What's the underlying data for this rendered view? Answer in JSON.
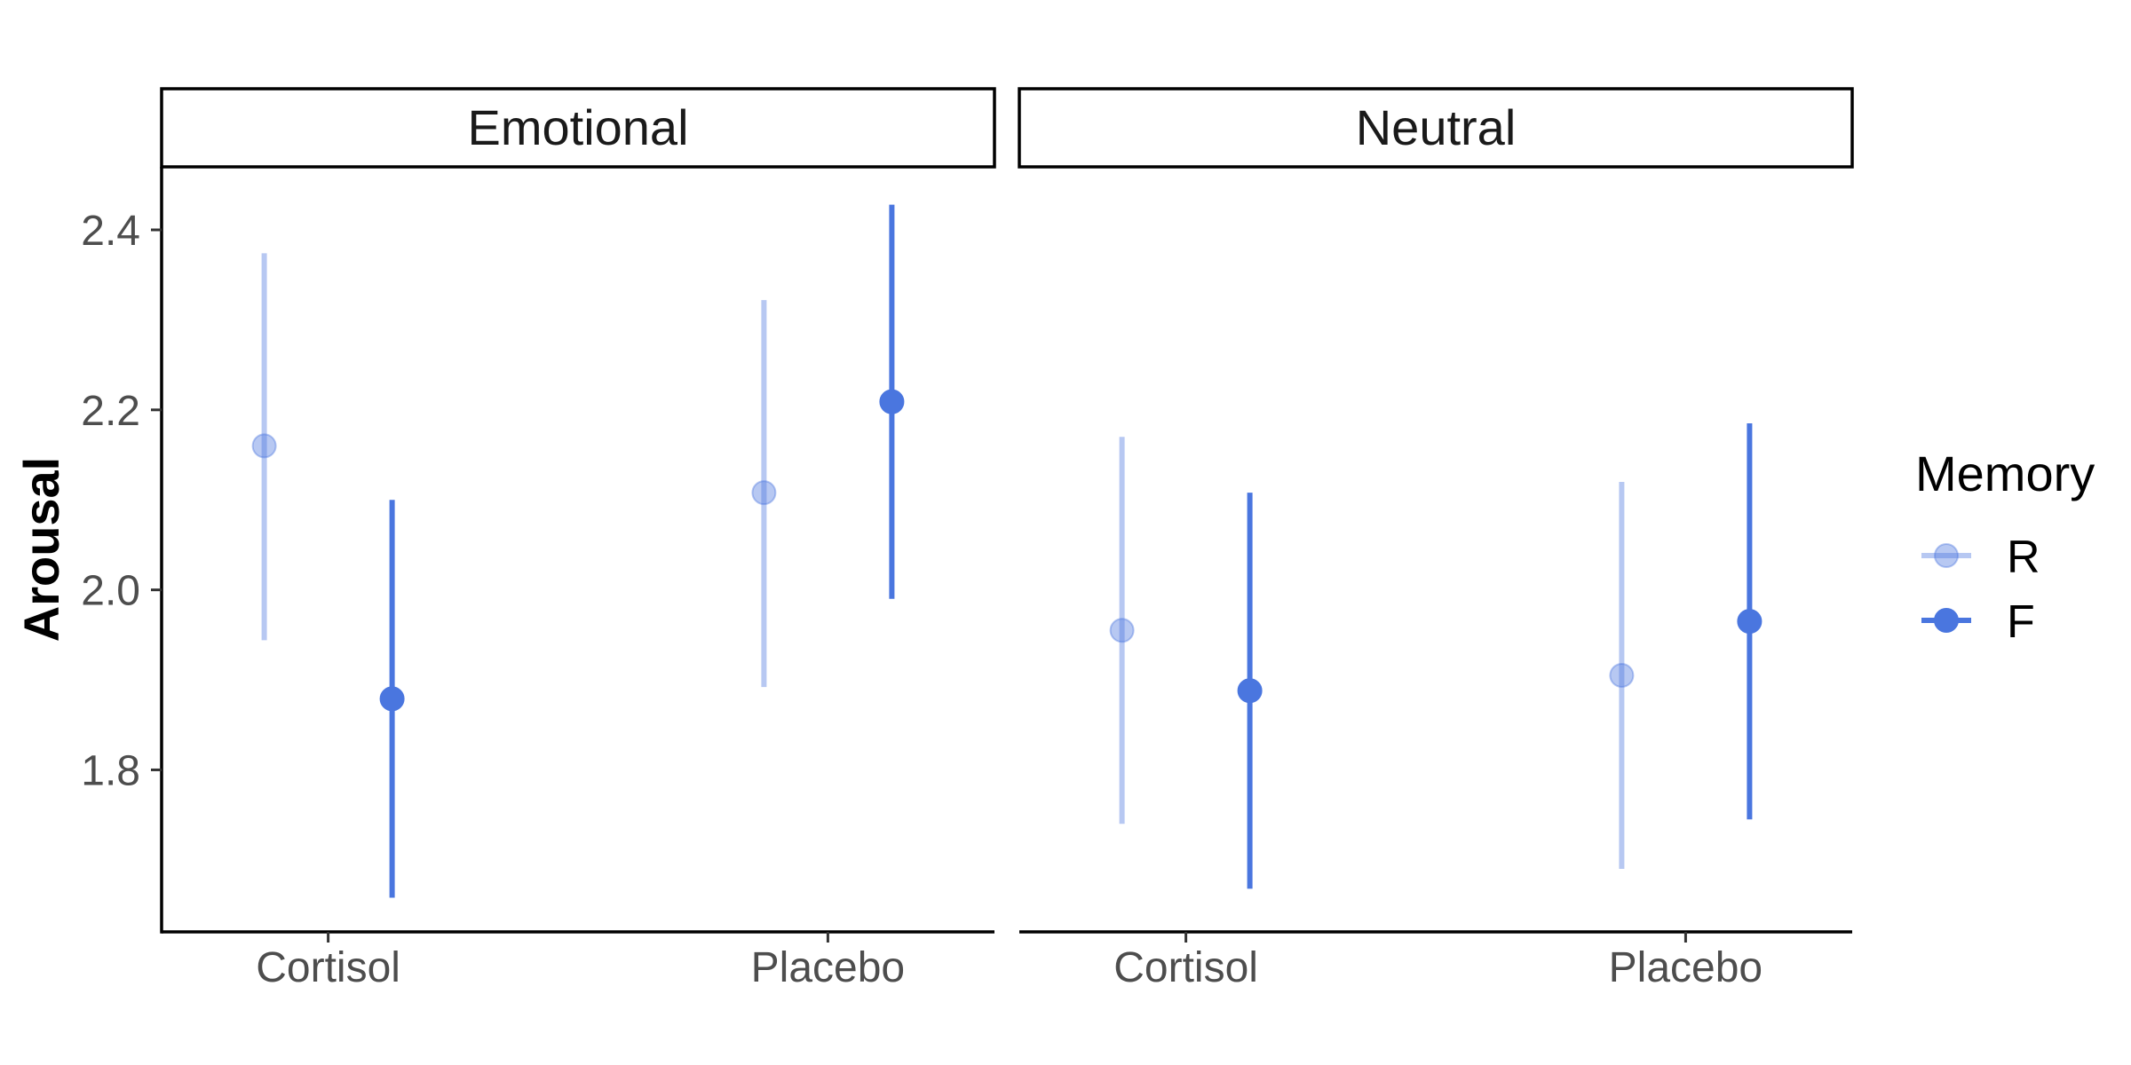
{
  "chart_data": {
    "type": "scatter",
    "subtype": "point-range",
    "ylabel": "Arousal",
    "xlabel": "",
    "ylim": [
      1.62,
      2.47
    ],
    "yticks": [
      "1.8",
      "2.0",
      "2.2",
      "2.4"
    ],
    "categories": [
      "Cortisol",
      "Placebo"
    ],
    "panels": [
      {
        "name": "Emotional"
      },
      {
        "name": "Neutral"
      }
    ],
    "legend": {
      "title": "Memory",
      "position": "right",
      "entries": [
        {
          "label": "R",
          "color": "#4a76df",
          "opacity": 0.4
        },
        {
          "label": "F",
          "color": "#4a76df",
          "opacity": 1.0
        }
      ]
    },
    "series": [
      {
        "name": "R",
        "points": [
          {
            "panel": "Emotional",
            "category": "Cortisol",
            "y": 2.16,
            "lower": 1.944,
            "upper": 2.374
          },
          {
            "panel": "Emotional",
            "category": "Placebo",
            "y": 2.108,
            "lower": 1.892,
            "upper": 2.322
          },
          {
            "panel": "Neutral",
            "category": "Cortisol",
            "y": 1.955,
            "lower": 1.74,
            "upper": 2.17
          },
          {
            "panel": "Neutral",
            "category": "Placebo",
            "y": 1.905,
            "lower": 1.69,
            "upper": 2.12
          }
        ]
      },
      {
        "name": "F",
        "points": [
          {
            "panel": "Emotional",
            "category": "Cortisol",
            "y": 1.879,
            "lower": 1.658,
            "upper": 2.1
          },
          {
            "panel": "Emotional",
            "category": "Placebo",
            "y": 2.209,
            "lower": 1.99,
            "upper": 2.428
          },
          {
            "panel": "Neutral",
            "category": "Cortisol",
            "y": 1.888,
            "lower": 1.668,
            "upper": 2.108
          },
          {
            "panel": "Neutral",
            "category": "Placebo",
            "y": 1.965,
            "lower": 1.745,
            "upper": 2.185
          }
        ]
      }
    ],
    "colors": {
      "series": "#4a76df",
      "axis": "#000000",
      "tick_text": "#4d4d4d"
    },
    "grid": false
  }
}
